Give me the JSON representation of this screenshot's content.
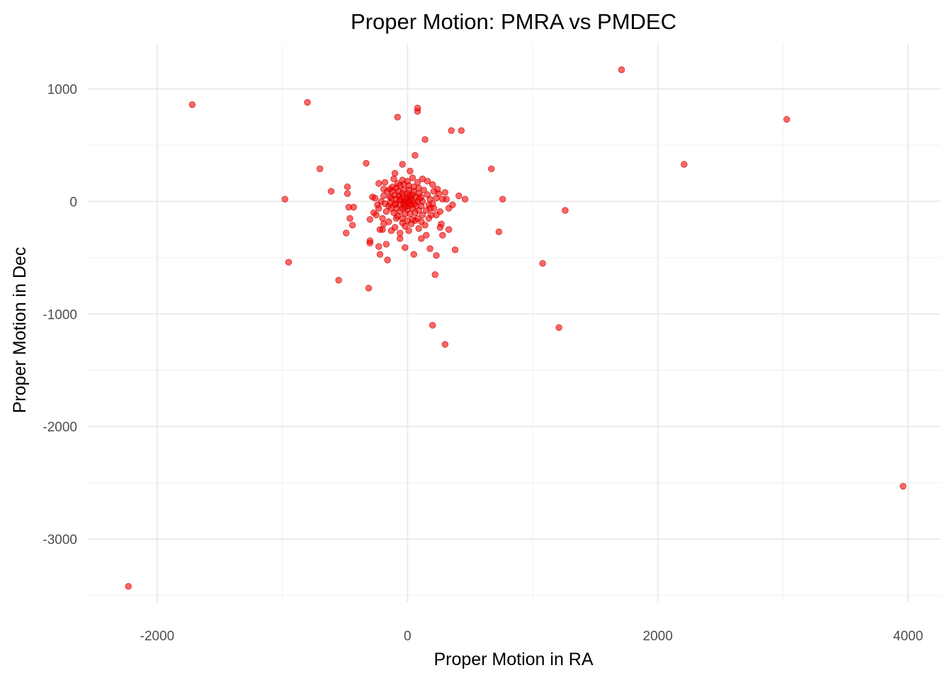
{
  "chart_data": {
    "type": "scatter",
    "title": "Proper Motion: PMRA vs PMDEC",
    "xlabel": "Proper Motion in RA",
    "ylabel": "Proper Motion in Dec",
    "xlim": [
      -2560,
      4260
    ],
    "ylim": [
      -3560,
      1400
    ],
    "x_ticks": [
      -2000,
      0,
      2000,
      4000
    ],
    "x_tick_labels": [
      "-2000",
      "0",
      "2000",
      "4000"
    ],
    "y_ticks": [
      -3000,
      -2000,
      -1000,
      0,
      1000
    ],
    "y_tick_labels": [
      "-3000",
      "-2000",
      "-1000",
      "0",
      "1000"
    ],
    "grid": true,
    "point_color": "#ff0000",
    "series": [
      {
        "points": [
          [
            -2230,
            -3420
          ],
          [
            -1720,
            860
          ],
          [
            -800,
            880
          ],
          [
            -950,
            -540
          ],
          [
            -980,
            20
          ],
          [
            -700,
            290
          ],
          [
            -610,
            90
          ],
          [
            -550,
            -700
          ],
          [
            -480,
            70
          ],
          [
            -480,
            130
          ],
          [
            -470,
            -50
          ],
          [
            -460,
            -150
          ],
          [
            -440,
            -210
          ],
          [
            -430,
            -50
          ],
          [
            -490,
            -280
          ],
          [
            -330,
            340
          ],
          [
            -310,
            -770
          ],
          [
            -300,
            -160
          ],
          [
            -300,
            -350
          ],
          [
            -300,
            -370
          ],
          [
            -280,
            40
          ],
          [
            -240,
            -30
          ],
          [
            -230,
            -400
          ],
          [
            -220,
            -470
          ],
          [
            -200,
            -250
          ],
          [
            -180,
            170
          ],
          [
            -170,
            -380
          ],
          [
            -160,
            -520
          ],
          [
            -140,
            110
          ],
          [
            -110,
            200
          ],
          [
            -80,
            750
          ],
          [
            -40,
            330
          ],
          [
            -20,
            -410
          ],
          [
            20,
            270
          ],
          [
            50,
            -470
          ],
          [
            60,
            410
          ],
          [
            80,
            800
          ],
          [
            80,
            830
          ],
          [
            140,
            550
          ],
          [
            180,
            -420
          ],
          [
            200,
            -1100
          ],
          [
            220,
            -650
          ],
          [
            230,
            -480
          ],
          [
            270,
            -200
          ],
          [
            280,
            -300
          ],
          [
            300,
            -1270
          ],
          [
            300,
            80
          ],
          [
            310,
            20
          ],
          [
            330,
            -60
          ],
          [
            330,
            -250
          ],
          [
            350,
            630
          ],
          [
            360,
            -30
          ],
          [
            380,
            -430
          ],
          [
            410,
            50
          ],
          [
            430,
            630
          ],
          [
            460,
            20
          ],
          [
            670,
            290
          ],
          [
            730,
            -270
          ],
          [
            760,
            20
          ],
          [
            1080,
            -550
          ],
          [
            1210,
            -1120
          ],
          [
            1260,
            -80
          ],
          [
            1710,
            1170
          ],
          [
            2210,
            330
          ],
          [
            3030,
            730
          ],
          [
            3960,
            -2530
          ],
          [
            -220,
            -250
          ],
          [
            -190,
            -200
          ],
          [
            -150,
            -180
          ],
          [
            -130,
            -260
          ],
          [
            -100,
            -230
          ],
          [
            -90,
            -150
          ],
          [
            -60,
            -280
          ],
          [
            -40,
            -190
          ],
          [
            -20,
            -220
          ],
          [
            10,
            -260
          ],
          [
            30,
            -200
          ],
          [
            60,
            -170
          ],
          [
            90,
            -240
          ],
          [
            110,
            -180
          ],
          [
            140,
            -210
          ],
          [
            170,
            -150
          ],
          [
            190,
            -120
          ],
          [
            210,
            -60
          ],
          [
            230,
            30
          ],
          [
            250,
            70
          ],
          [
            260,
            -90
          ],
          [
            240,
            110
          ],
          [
            200,
            150
          ],
          [
            160,
            180
          ],
          [
            120,
            200
          ],
          [
            80,
            170
          ],
          [
            40,
            210
          ],
          [
            0,
            180
          ],
          [
            -40,
            190
          ],
          [
            -80,
            160
          ],
          [
            -120,
            130
          ],
          [
            -160,
            90
          ],
          [
            -190,
            50
          ],
          [
            -210,
            0
          ],
          [
            -230,
            -60
          ],
          [
            -250,
            -120
          ],
          [
            -200,
            -150
          ],
          [
            -170,
            -90
          ],
          [
            -150,
            -40
          ],
          [
            -140,
            40
          ],
          [
            -120,
            90
          ],
          [
            -90,
            120
          ],
          [
            -60,
            140
          ],
          [
            -30,
            150
          ],
          [
            10,
            140
          ],
          [
            50,
            130
          ],
          [
            90,
            120
          ],
          [
            130,
            100
          ],
          [
            160,
            60
          ],
          [
            180,
            20
          ],
          [
            170,
            -30
          ],
          [
            150,
            -80
          ],
          [
            120,
            -120
          ],
          [
            80,
            -150
          ],
          [
            40,
            -160
          ],
          [
            0,
            -170
          ],
          [
            -40,
            -150
          ],
          [
            -80,
            -130
          ],
          [
            -110,
            -100
          ],
          [
            -130,
            -60
          ],
          [
            -140,
            -10
          ],
          [
            -130,
            30
          ],
          [
            -100,
            60
          ],
          [
            -70,
            90
          ],
          [
            -30,
            100
          ],
          [
            10,
            100
          ],
          [
            50,
            90
          ],
          [
            90,
            70
          ],
          [
            110,
            40
          ],
          [
            120,
            0
          ],
          [
            110,
            -40
          ],
          [
            90,
            -80
          ],
          [
            60,
            -100
          ],
          [
            20,
            -110
          ],
          [
            -20,
            -110
          ],
          [
            -60,
            -90
          ],
          [
            -90,
            -60
          ],
          [
            -100,
            -20
          ],
          [
            -90,
            20
          ],
          [
            -70,
            50
          ],
          [
            -40,
            70
          ],
          [
            0,
            70
          ],
          [
            40,
            60
          ],
          [
            70,
            40
          ],
          [
            80,
            0
          ],
          [
            70,
            -40
          ],
          [
            40,
            -60
          ],
          [
            0,
            -70
          ],
          [
            -40,
            -60
          ],
          [
            -60,
            -30
          ],
          [
            -60,
            10
          ],
          [
            -40,
            40
          ],
          [
            0,
            40
          ],
          [
            30,
            30
          ],
          [
            40,
            0
          ],
          [
            30,
            -30
          ],
          [
            0,
            -40
          ],
          [
            -30,
            -30
          ],
          [
            -30,
            0
          ],
          [
            0,
            0
          ],
          [
            15,
            15
          ],
          [
            -15,
            15
          ],
          [
            -15,
            -15
          ],
          [
            15,
            -15
          ],
          [
            20,
            50
          ],
          [
            -20,
            -50
          ],
          [
            55,
            -20
          ],
          [
            -55,
            20
          ],
          [
            95,
            25
          ],
          [
            -95,
            -25
          ],
          [
            200,
            -20
          ],
          [
            -180,
            -20
          ],
          [
            180,
            -60
          ],
          [
            -190,
            110
          ],
          [
            210,
            90
          ],
          [
            260,
            -230
          ],
          [
            -260,
            30
          ],
          [
            280,
            20
          ],
          [
            -230,
            160
          ],
          [
            150,
            -300
          ],
          [
            -100,
            250
          ],
          [
            110,
            -330
          ],
          [
            -60,
            -330
          ],
          [
            230,
            -120
          ],
          [
            -270,
            -100
          ]
        ]
      }
    ]
  }
}
